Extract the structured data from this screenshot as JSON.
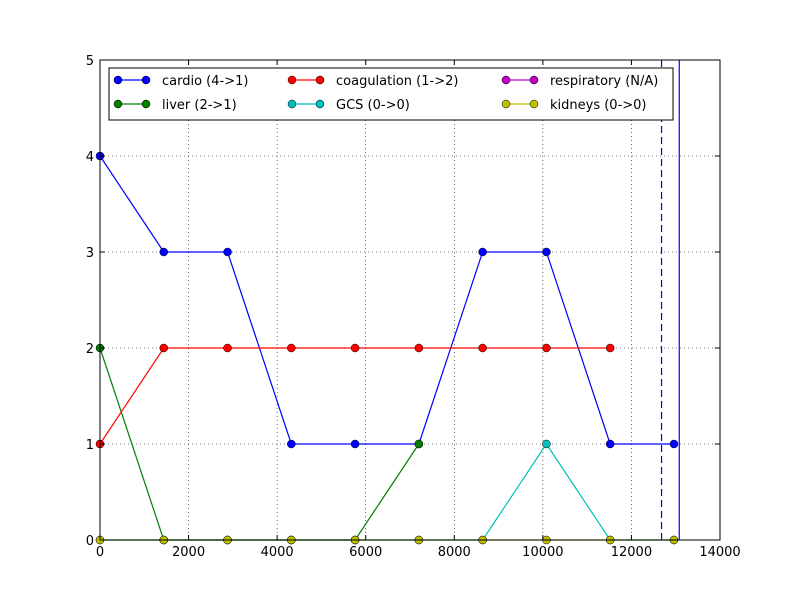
{
  "chart_data": {
    "type": "line",
    "title": "",
    "xlabel": "",
    "ylabel": "",
    "xlim": [
      0,
      14000
    ],
    "ylim": [
      0,
      5
    ],
    "xticks": [
      0,
      2000,
      4000,
      6000,
      8000,
      10000,
      12000,
      14000
    ],
    "yticks": [
      0,
      1,
      2,
      3,
      4,
      5
    ],
    "grid": true,
    "legend_position": "top",
    "legend_columns": 3,
    "series": [
      {
        "name": "cardio (4->1)",
        "color": "#0000ff",
        "x": [
          0,
          1440,
          2880,
          4320,
          5760,
          7200,
          8640,
          10080,
          11520,
          12960
        ],
        "y": [
          4,
          3,
          3,
          1,
          1,
          1,
          3,
          3,
          1,
          1
        ]
      },
      {
        "name": "liver (2->1)",
        "color": "#008000",
        "x": [
          0,
          1440,
          2880,
          4320,
          5760,
          7200
        ],
        "y": [
          2,
          0,
          0,
          0,
          0,
          1
        ]
      },
      {
        "name": "coagulation (1->2)",
        "color": "#ff0000",
        "x": [
          0,
          1440,
          2880,
          4320,
          5760,
          7200,
          8640,
          10080,
          11520
        ],
        "y": [
          1,
          2,
          2,
          2,
          2,
          2,
          2,
          2,
          2
        ]
      },
      {
        "name": "GCS (0->0)",
        "color": "#00bfbf",
        "x": [
          0,
          1440,
          2880,
          4320,
          5760,
          7200,
          8640,
          10080,
          11520,
          12960
        ],
        "y": [
          0,
          0,
          0,
          0,
          0,
          0,
          0,
          1,
          0,
          0
        ]
      },
      {
        "name": "respiratory (N/A)",
        "color": "#bf00bf",
        "x": [],
        "y": []
      },
      {
        "name": "kidneys (0->0)",
        "color": "#bfbf00",
        "x": [
          0,
          1440,
          2880,
          4320,
          5760,
          7200,
          8640,
          10080,
          11520,
          12960
        ],
        "y": [
          0,
          0,
          0,
          0,
          0,
          0,
          0,
          0,
          0,
          0
        ]
      }
    ],
    "vertical_lines": [
      {
        "x": 12680,
        "style": "dashed",
        "color": "#0000ff"
      },
      {
        "x": 13080,
        "style": "solid",
        "color": "#0000ff"
      }
    ]
  }
}
